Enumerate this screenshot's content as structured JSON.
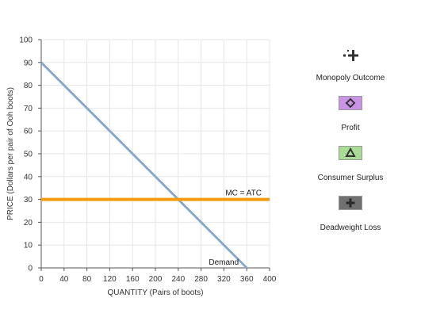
{
  "chart_data": {
    "type": "line",
    "xlabel": "QUANTITY (Pairs of boots)",
    "ylabel": "PRICE (Dollars per pair of Ooh boots)",
    "xlim": [
      0,
      400
    ],
    "ylim": [
      0,
      100
    ],
    "xticks": [
      0,
      40,
      80,
      120,
      160,
      200,
      240,
      280,
      320,
      360,
      400
    ],
    "yticks": [
      0,
      10,
      20,
      30,
      40,
      50,
      60,
      70,
      80,
      90,
      100
    ],
    "grid": true,
    "series": [
      {
        "name": "Demand",
        "color": "#86a9cf",
        "points": [
          [
            0,
            90
          ],
          [
            360,
            0
          ]
        ]
      },
      {
        "name": "MC = ATC",
        "color": "#f39c12",
        "points": [
          [
            0,
            30
          ],
          [
            400,
            30
          ]
        ]
      }
    ]
  },
  "legend": {
    "items": [
      {
        "label": "Monopoly Outcome",
        "icon": "cross-dot-icon"
      },
      {
        "label": "Profit",
        "icon": "diamond-icon",
        "color": "#c994e6"
      },
      {
        "label": "Consumer Surplus",
        "icon": "triangle-icon",
        "color": "#a9dd96"
      },
      {
        "label": "Deadweight Loss",
        "icon": "plus-icon",
        "color": "#707070"
      }
    ]
  }
}
